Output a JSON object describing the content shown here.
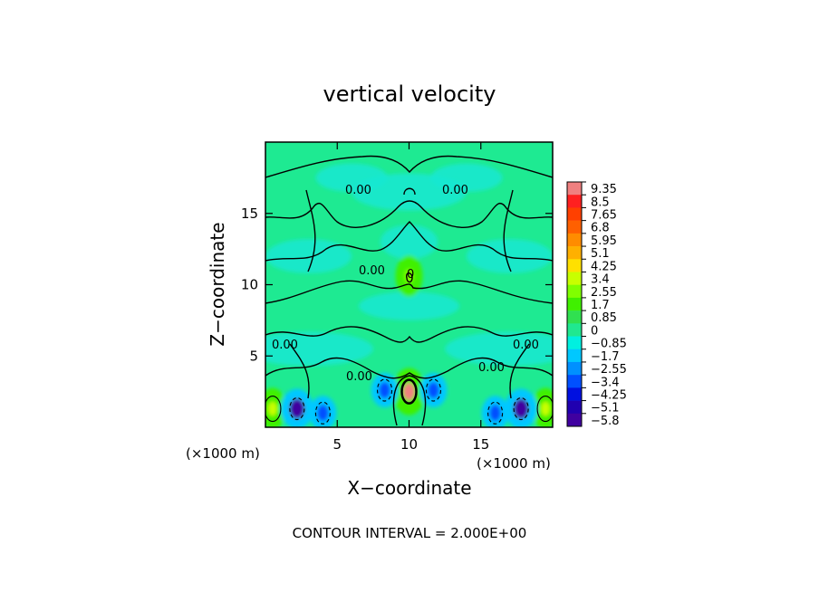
{
  "chart_data": {
    "type": "heatmap",
    "title": "vertical velocity",
    "xlabel": "X−coordinate",
    "ylabel": "Z−coordinate",
    "x_units": "(×1000 m)",
    "z_units": "(×1000 m)",
    "xlim": [
      0,
      20
    ],
    "zlim": [
      0,
      20
    ],
    "x_ticks": [
      5,
      10,
      15
    ],
    "z_ticks": [
      5,
      10,
      15
    ],
    "footer": "CONTOUR INTERVAL = 2.000E+00",
    "contour_labels": [
      "0.00",
      "0.00",
      "0.00",
      "0.00",
      "0.00",
      "0.00",
      "0.00",
      "0"
    ],
    "colorbar": {
      "labels": [
        "9.35",
        "8.5",
        "7.65",
        "6.8",
        "5.95",
        "5.1",
        "4.25",
        "3.4",
        "2.55",
        "1.7",
        "0.85",
        "0",
        "−0.85",
        "−1.7",
        "−2.55",
        "−3.4",
        "−4.25",
        "−5.1",
        "−5.8"
      ],
      "colors": [
        "#f08080",
        "#ff2020",
        "#ff4000",
        "#ff6000",
        "#ff8c00",
        "#ffb000",
        "#ffe000",
        "#c8ff00",
        "#80ff00",
        "#40f000",
        "#30e050",
        "#20e890",
        "#00f0e0",
        "#00c8ff",
        "#0090ff",
        "#0050ff",
        "#0010e0",
        "#2000b0",
        "#4000a0"
      ]
    },
    "features": [
      {
        "x": 10.0,
        "z": 2.5,
        "value": 9.2,
        "kind": "updraft core"
      },
      {
        "x": 10.0,
        "z": 10.6,
        "value": 2.5,
        "kind": "weak updraft"
      },
      {
        "x": 0.5,
        "z": 1.3,
        "value": 3.0,
        "kind": "updraft"
      },
      {
        "x": 19.5,
        "z": 1.3,
        "value": 3.0,
        "kind": "updraft"
      },
      {
        "x": 2.2,
        "z": 1.3,
        "value": -5.5,
        "kind": "downdraft"
      },
      {
        "x": 17.8,
        "z": 1.3,
        "value": -5.5,
        "kind": "downdraft"
      },
      {
        "x": 8.3,
        "z": 2.6,
        "value": -3.0,
        "kind": "downdraft"
      },
      {
        "x": 11.7,
        "z": 2.6,
        "value": -3.0,
        "kind": "downdraft"
      },
      {
        "x": 4.0,
        "z": 1.0,
        "value": -3.2,
        "kind": "downdraft"
      },
      {
        "x": 16.0,
        "z": 1.0,
        "value": -3.2,
        "kind": "downdraft"
      }
    ]
  }
}
